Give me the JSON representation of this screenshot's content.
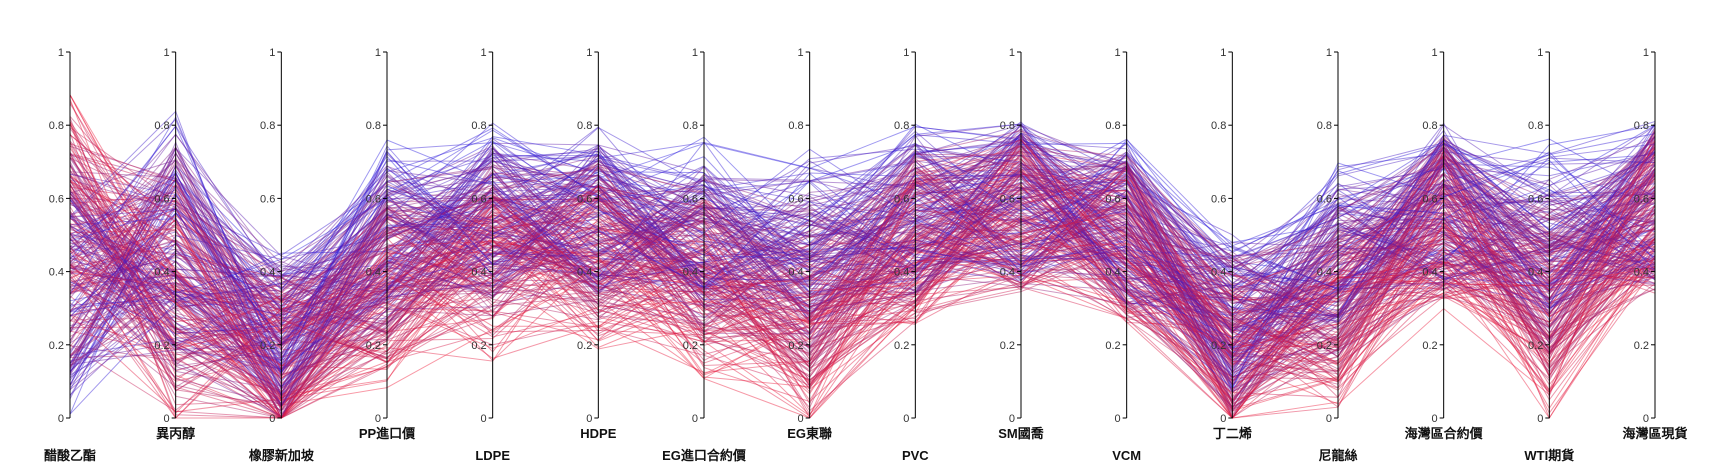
{
  "chart_data": {
    "type": "parallel-coordinates",
    "title": "",
    "axes": [
      "醋酸乙酯",
      "異丙醇",
      "橡膠新加坡",
      "PP進口價",
      "LDPE",
      "HDPE",
      "EG進口合約價",
      "EG東聯",
      "PVC",
      "SM國喬",
      "VCM",
      "丁二烯",
      "尼龍絲",
      "海灣區合約價",
      "WTI期貨",
      "海灣區現貨"
    ],
    "ticks": [
      "0",
      "0.2",
      "0.4",
      "0.6",
      "0.8",
      "1"
    ],
    "tick_values": [
      0,
      0.2,
      0.4,
      0.6,
      0.8,
      1
    ],
    "ylim": [
      0,
      1
    ],
    "grid": false,
    "legend": "none",
    "line_count": 300,
    "color_encoding": "blue-to-red gradient by first-axis value",
    "colors": {
      "low": "#2a1ce0",
      "mid": "#a01e6e",
      "high": "#f01c3a"
    },
    "line_opacity": 0.45,
    "series_profile": {
      "description": "normalized typical value per axis for low/high groups",
      "low_group": [
        0.3,
        0.55,
        0.25,
        0.55,
        0.6,
        0.6,
        0.55,
        0.55,
        0.6,
        0.6,
        0.55,
        0.3,
        0.5,
        0.6,
        0.55,
        0.6
      ],
      "high_group": [
        0.6,
        0.25,
        0.12,
        0.3,
        0.35,
        0.38,
        0.3,
        0.15,
        0.45,
        0.55,
        0.45,
        0.15,
        0.2,
        0.5,
        0.18,
        0.55
      ]
    }
  }
}
